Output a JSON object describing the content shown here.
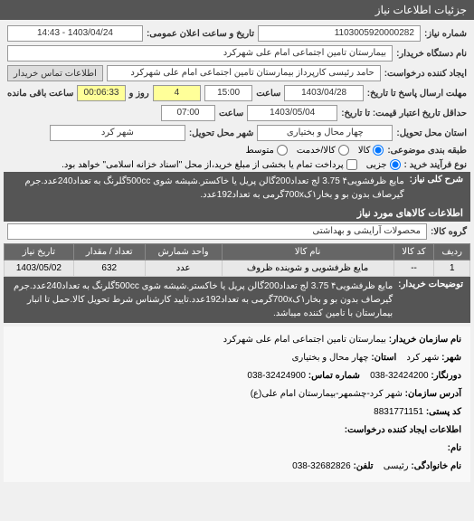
{
  "header": {
    "title": "جزئیات اطلاعات نیاز"
  },
  "fields": {
    "niaz_number_label": "شماره نیاز:",
    "niaz_number": "1103005920000282",
    "announce_label": "تاریخ و ساعت اعلان عمومی:",
    "announce_value": "1403/04/24 - 14:43",
    "buyer_label": "نام دستگاه خریدار:",
    "buyer_value": "بیمارستان تامین اجتماعی امام علی شهرکرد",
    "creator_label": "ایجاد کننده درخواست:",
    "creator_value": "حامد رئیسی کارپرداز بیمارستان تامین اجتماعی امام علی شهرکرد",
    "contact_button": "اطلاعات تماس خریدار",
    "deadline_label": "مهلت ارسال پاسخ تا تاریخ:",
    "deadline_date": "1403/04/28",
    "saat_label": "ساعت",
    "deadline_time": "15:00",
    "remain_days": "4",
    "remain_days_label": "روز و",
    "remain_time": "00:06:33",
    "remain_label": "ساعت باقی مانده",
    "price_validity_label": "حداقل تاریخ اعتبار قیمت: تا تاریخ:",
    "price_validity_date": "1403/05/04",
    "price_validity_time": "07:00",
    "delivery_state_label": "استان محل تحویل:",
    "delivery_state": "چهار محال و بختیاری",
    "delivery_city_label": "شهر محل تحویل:",
    "delivery_city": "شهر کرد",
    "commodity_type_label": "طبقه بندی موضوعی:",
    "opt_kala": "کالا",
    "opt_service": "کالا/خدمت",
    "opt_mix": "متوسط",
    "buy_type_label": "نوع فرآیند خرید :",
    "opt_partial": "جزیی",
    "opt_full": "پرداخت تمام یا بخشی از مبلغ خرید،از محل \"اسناد خزانه اسلامی\" خواهد بود.",
    "sharh_label": "شرح کلی نیاز:",
    "sharh_text": "مایع ظرفشویی۴ 3.75 لج تعداد200گالن  پریل یا خاکستر.شیشه شوی 500ccگلرنگ به تعداد240عدد.جرم گیرصاف بدون بو و بخار۱ک700xگرمی به تعداد192عدد.",
    "goods_group_label": "گروه کالا:",
    "goods_group": "محصولات آرایشی و بهداشتی",
    "tozihat_label": "توضیحات خریدار:",
    "tozihat_text": "مایع ظرفشویی۴ 3.75 لج تعداد200گالن پریل یا خاکستر.شیشه شوی 500ccگلرنگ به تعداد240عدد.جرم گیرصاف بدون بو و بخار۱ک700xگرمی به تعداد192عدد.تایید کارشناس شرط تحویل کالا.حمل تا انبار بیمارستان با تامین کننده میباشد."
  },
  "goods_section_label": "اطلاعات کالاهای مورد نیاز",
  "table": {
    "headers": [
      "ردیف",
      "کد کالا",
      "نام کالا",
      "واحد شمارش",
      "تعداد / مقدار",
      "تاریخ نیاز"
    ],
    "rows": [
      [
        "1",
        "--",
        "مایع ظرفشویی و شوینده ظروف",
        "عدد",
        "632",
        "1403/05/02"
      ]
    ]
  },
  "details": {
    "org_name_label": "نام سازمان خریدار:",
    "org_name": "بیمارستان تامین اجتماعی امام علی شهرکرد",
    "city_label": "شهر:",
    "city": "شهر کرد",
    "province_label": "استان:",
    "province": "چهار محال و بختیاری",
    "fax_label": "دورنگار:",
    "fax": "32424200-038",
    "phone_label": "شماره تماس:",
    "phone": "32424900-038",
    "address_label": "آدرس سازمان:",
    "address": "شهر کرد-چشمهر-بیمارستان امام علی(ع)",
    "postal_label": "کد پستی:",
    "postal": "8831771151",
    "req_creator_label": "اطلاعات ایجاد کننده درخواست:",
    "name_label": "نام:",
    "family_label": "نام خانوادگی:",
    "family": "رئیسی",
    "tel_label": "تلفن:",
    "tel": "32682826-038"
  }
}
